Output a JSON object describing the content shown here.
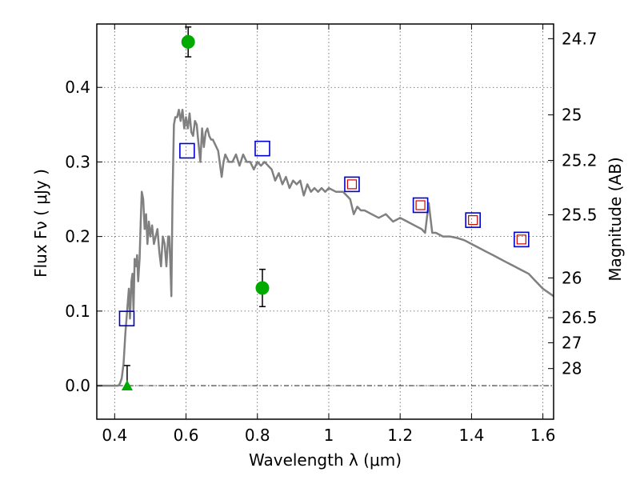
{
  "chart_data": {
    "type": "scatter",
    "xlabel": "Wavelength  λ (μm)",
    "ylabel": "Flux  Fν  ( μJy )",
    "ylabel_right": "Magnitude (AB)",
    "xlim": [
      0.35,
      1.63
    ],
    "ylim": [
      -0.045,
      0.485
    ],
    "grid": true,
    "x_ticks": [
      0.4,
      0.6,
      0.8,
      1.0,
      1.2,
      1.4,
      1.6
    ],
    "x_tick_labels": [
      "0.4",
      "0.6",
      "0.8",
      "1",
      "1.2",
      "1.4",
      "1.6"
    ],
    "y_ticks": [
      0.0,
      0.1,
      0.2,
      0.3,
      0.4
    ],
    "y_tick_labels": [
      "0.0",
      "0.1",
      "0.2",
      "0.3",
      "0.4"
    ],
    "right_ticks": [
      {
        "flux": 0.4653,
        "label": "24.7"
      },
      {
        "flux": 0.3631,
        "label": "25"
      },
      {
        "flux": 0.302,
        "label": "25.2"
      },
      {
        "flux": 0.2291,
        "label": "25.5"
      },
      {
        "flux": 0.1445,
        "label": "26"
      },
      {
        "flux": 0.0912,
        "label": "26.5"
      },
      {
        "flux": 0.0575,
        "label": "27"
      },
      {
        "flux": 0.0229,
        "label": "28"
      }
    ],
    "series": [
      {
        "kind": "sed_line",
        "color": "#808080",
        "x": [
          0.35,
          0.41,
          0.415,
          0.42,
          0.425,
          0.43,
          0.435,
          0.44,
          0.443,
          0.447,
          0.45,
          0.453,
          0.456,
          0.46,
          0.463,
          0.466,
          0.47,
          0.473,
          0.476,
          0.48,
          0.484,
          0.488,
          0.492,
          0.496,
          0.5,
          0.505,
          0.51,
          0.515,
          0.52,
          0.525,
          0.53,
          0.535,
          0.54,
          0.545,
          0.55,
          0.553,
          0.556,
          0.559,
          0.562,
          0.566,
          0.57,
          0.575,
          0.58,
          0.585,
          0.59,
          0.595,
          0.6,
          0.605,
          0.61,
          0.615,
          0.62,
          0.625,
          0.63,
          0.635,
          0.64,
          0.645,
          0.65,
          0.655,
          0.66,
          0.665,
          0.67,
          0.675,
          0.68,
          0.69,
          0.7,
          0.705,
          0.71,
          0.72,
          0.73,
          0.74,
          0.75,
          0.76,
          0.77,
          0.78,
          0.79,
          0.8,
          0.81,
          0.82,
          0.83,
          0.84,
          0.85,
          0.86,
          0.87,
          0.88,
          0.89,
          0.9,
          0.91,
          0.92,
          0.93,
          0.94,
          0.95,
          0.96,
          0.97,
          0.98,
          0.99,
          1.0,
          1.02,
          1.04,
          1.05,
          1.06,
          1.07,
          1.08,
          1.09,
          1.1,
          1.12,
          1.14,
          1.16,
          1.18,
          1.2,
          1.22,
          1.24,
          1.26,
          1.27,
          1.28,
          1.29,
          1.3,
          1.32,
          1.34,
          1.36,
          1.38,
          1.4,
          1.42,
          1.44,
          1.46,
          1.48,
          1.5,
          1.52,
          1.54,
          1.56,
          1.58,
          1.6,
          1.63
        ],
        "y": [
          0.0,
          0.0,
          0.003,
          0.01,
          0.03,
          0.07,
          0.1,
          0.13,
          0.09,
          0.14,
          0.15,
          0.1,
          0.17,
          0.16,
          0.175,
          0.14,
          0.17,
          0.22,
          0.26,
          0.25,
          0.21,
          0.23,
          0.19,
          0.22,
          0.2,
          0.215,
          0.19,
          0.2,
          0.21,
          0.18,
          0.16,
          0.2,
          0.19,
          0.16,
          0.2,
          0.2,
          0.165,
          0.12,
          0.25,
          0.35,
          0.36,
          0.36,
          0.37,
          0.355,
          0.37,
          0.345,
          0.36,
          0.345,
          0.365,
          0.34,
          0.335,
          0.355,
          0.35,
          0.325,
          0.3,
          0.345,
          0.32,
          0.34,
          0.345,
          0.335,
          0.33,
          0.33,
          0.325,
          0.315,
          0.28,
          0.3,
          0.31,
          0.3,
          0.3,
          0.31,
          0.295,
          0.31,
          0.3,
          0.3,
          0.29,
          0.3,
          0.295,
          0.3,
          0.295,
          0.29,
          0.275,
          0.285,
          0.27,
          0.28,
          0.265,
          0.275,
          0.27,
          0.275,
          0.255,
          0.27,
          0.26,
          0.265,
          0.26,
          0.265,
          0.26,
          0.265,
          0.26,
          0.26,
          0.255,
          0.25,
          0.23,
          0.24,
          0.235,
          0.235,
          0.23,
          0.225,
          0.23,
          0.22,
          0.225,
          0.22,
          0.215,
          0.21,
          0.205,
          0.245,
          0.205,
          0.205,
          0.2,
          0.2,
          0.198,
          0.195,
          0.19,
          0.185,
          0.18,
          0.175,
          0.17,
          0.165,
          0.16,
          0.155,
          0.15,
          0.14,
          0.13,
          0.12
        ]
      },
      {
        "kind": "model_squares",
        "color": "#0000cc",
        "x": [
          0.434,
          0.603,
          0.814,
          1.065,
          1.257,
          1.404,
          1.54
        ],
        "y": [
          0.09,
          0.315,
          0.318,
          0.27,
          0.242,
          0.222,
          0.196
        ]
      },
      {
        "kind": "inner_squares",
        "color": "#cc0000",
        "x": [
          1.065,
          1.257,
          1.404,
          1.54
        ],
        "y": [
          0.27,
          0.242,
          0.222,
          0.196
        ]
      },
      {
        "kind": "detections",
        "color": "#00aa00",
        "x": [
          0.606,
          0.814
        ],
        "y": [
          0.461,
          0.131
        ],
        "yerr": [
          0.02,
          0.025
        ]
      },
      {
        "kind": "upper_limit",
        "color": "#00aa00",
        "x": [
          0.435
        ],
        "y": [
          0.0
        ],
        "yerr_up": [
          0.027
        ]
      }
    ]
  }
}
